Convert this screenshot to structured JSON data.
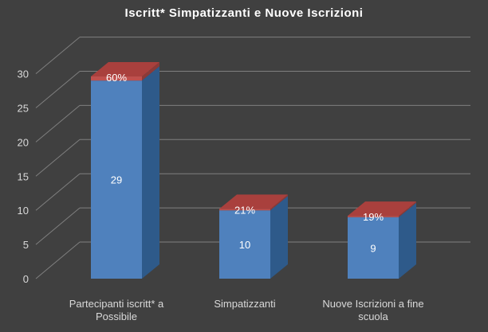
{
  "chart_data": {
    "type": "bar",
    "title": "Iscritt* Simpatizzanti e Nuove Iscrizioni",
    "categories": [
      "Partecipanti iscritt* a Possibile",
      "Simpatizzanti",
      "Nuove Iscrizioni a fine scuola"
    ],
    "category_lines": [
      [
        "Partecipanti iscritt* a",
        "Possibile"
      ],
      [
        "Simpatizzanti"
      ],
      [
        "Nuove Iscrizioni a fine",
        "scuola"
      ]
    ],
    "series": [
      {
        "values": [
          29,
          10,
          9
        ],
        "labels": [
          "29",
          "10",
          "9"
        ],
        "color": "#4f81bd"
      },
      {
        "values": [
          0.6,
          0.21,
          0.19
        ],
        "labels": [
          "60%",
          "21%",
          "19%"
        ],
        "color": "#c0504d"
      }
    ],
    "y_ticks": [
      "0",
      "5",
      "10",
      "15",
      "20",
      "25",
      "30"
    ],
    "ylim": [
      0,
      30
    ],
    "stacked": true,
    "three_d": true,
    "grid": true,
    "legend": "none"
  }
}
